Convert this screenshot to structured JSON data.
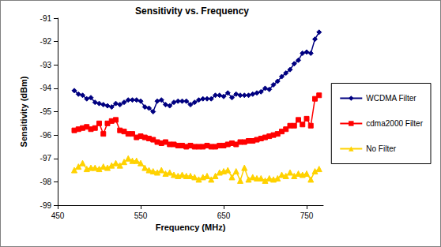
{
  "chart_data": {
    "type": "line",
    "title": "Sensitivity vs. Frequency",
    "x_label": "Frequency (MHz)",
    "y_label": "Sensitivity (dBm)",
    "x": [
      470,
      475,
      480,
      485,
      490,
      495,
      500,
      505,
      510,
      515,
      520,
      525,
      530,
      535,
      540,
      545,
      550,
      555,
      560,
      565,
      570,
      575,
      580,
      585,
      590,
      595,
      600,
      605,
      610,
      615,
      620,
      625,
      630,
      635,
      640,
      645,
      650,
      655,
      660,
      665,
      670,
      675,
      680,
      685,
      690,
      695,
      700,
      705,
      710,
      715,
      720,
      725,
      730,
      735,
      740,
      745,
      750,
      755,
      760,
      765
    ],
    "series": [
      {
        "name": "WCDMA Filter",
        "color": "#000080",
        "marker": "diamond",
        "values": [
          -94.1,
          -94.25,
          -94.3,
          -94.45,
          -94.4,
          -94.6,
          -94.65,
          -94.7,
          -94.75,
          -94.8,
          -94.65,
          -94.7,
          -94.6,
          -94.5,
          -94.5,
          -94.5,
          -94.55,
          -94.8,
          -94.85,
          -95.0,
          -94.55,
          -94.5,
          -94.7,
          -94.75,
          -94.6,
          -94.55,
          -94.55,
          -94.55,
          -94.7,
          -94.6,
          -94.5,
          -94.45,
          -94.45,
          -94.45,
          -94.3,
          -94.3,
          -94.35,
          -94.2,
          -94.4,
          -94.25,
          -94.3,
          -94.3,
          -94.3,
          -94.25,
          -94.2,
          -94.15,
          -94.0,
          -94.05,
          -93.85,
          -93.7,
          -93.5,
          -93.35,
          -93.2,
          -92.95,
          -92.8,
          -92.5,
          -92.45,
          -92.5,
          -91.9,
          -91.6
        ]
      },
      {
        "name": "cdma2000 Filter",
        "color": "#FF0000",
        "marker": "square",
        "values": [
          -95.8,
          -95.75,
          -95.7,
          -95.65,
          -95.75,
          -95.7,
          -95.5,
          -95.95,
          -95.5,
          -95.4,
          -95.35,
          -95.8,
          -95.85,
          -95.95,
          -95.95,
          -96.1,
          -96.05,
          -96.1,
          -96.15,
          -96.2,
          -96.3,
          -96.35,
          -96.3,
          -96.4,
          -96.4,
          -96.45,
          -96.45,
          -96.5,
          -96.45,
          -96.5,
          -96.5,
          -96.5,
          -96.45,
          -96.5,
          -96.5,
          -96.45,
          -96.45,
          -96.4,
          -96.35,
          -96.4,
          -96.3,
          -96.3,
          -96.25,
          -96.25,
          -96.2,
          -96.15,
          -96.1,
          -96.05,
          -96.0,
          -95.95,
          -95.85,
          -95.75,
          -95.6,
          -95.6,
          -95.35,
          -95.55,
          -95.3,
          -95.6,
          -94.45,
          -94.3
        ]
      },
      {
        "name": "No Filter",
        "color": "#FFD200",
        "marker": "triangle",
        "values": [
          -97.5,
          -97.35,
          -97.2,
          -97.45,
          -97.4,
          -97.4,
          -97.45,
          -97.35,
          -97.4,
          -97.3,
          -97.2,
          -97.3,
          -97.15,
          -97.0,
          -97.1,
          -97.1,
          -97.2,
          -97.4,
          -97.5,
          -97.55,
          -97.6,
          -97.5,
          -97.65,
          -97.6,
          -97.7,
          -97.75,
          -97.7,
          -97.75,
          -97.75,
          -97.8,
          -97.9,
          -97.8,
          -97.75,
          -97.9,
          -97.75,
          -97.6,
          -97.55,
          -97.5,
          -97.8,
          -97.55,
          -97.95,
          -97.4,
          -97.9,
          -97.8,
          -97.85,
          -97.85,
          -97.95,
          -97.85,
          -97.9,
          -97.85,
          -97.7,
          -97.75,
          -97.6,
          -97.75,
          -97.65,
          -97.7,
          -97.65,
          -97.9,
          -97.55,
          -97.45
        ]
      }
    ],
    "xlim": [
      450,
      770
    ],
    "xticks": [
      450,
      550,
      650,
      750
    ],
    "ylim": [
      -99,
      -91
    ],
    "yticks": [
      -99,
      -98,
      -97,
      -96,
      -95,
      -94,
      -93,
      -92,
      -91
    ],
    "grid": false,
    "legend": "right"
  }
}
